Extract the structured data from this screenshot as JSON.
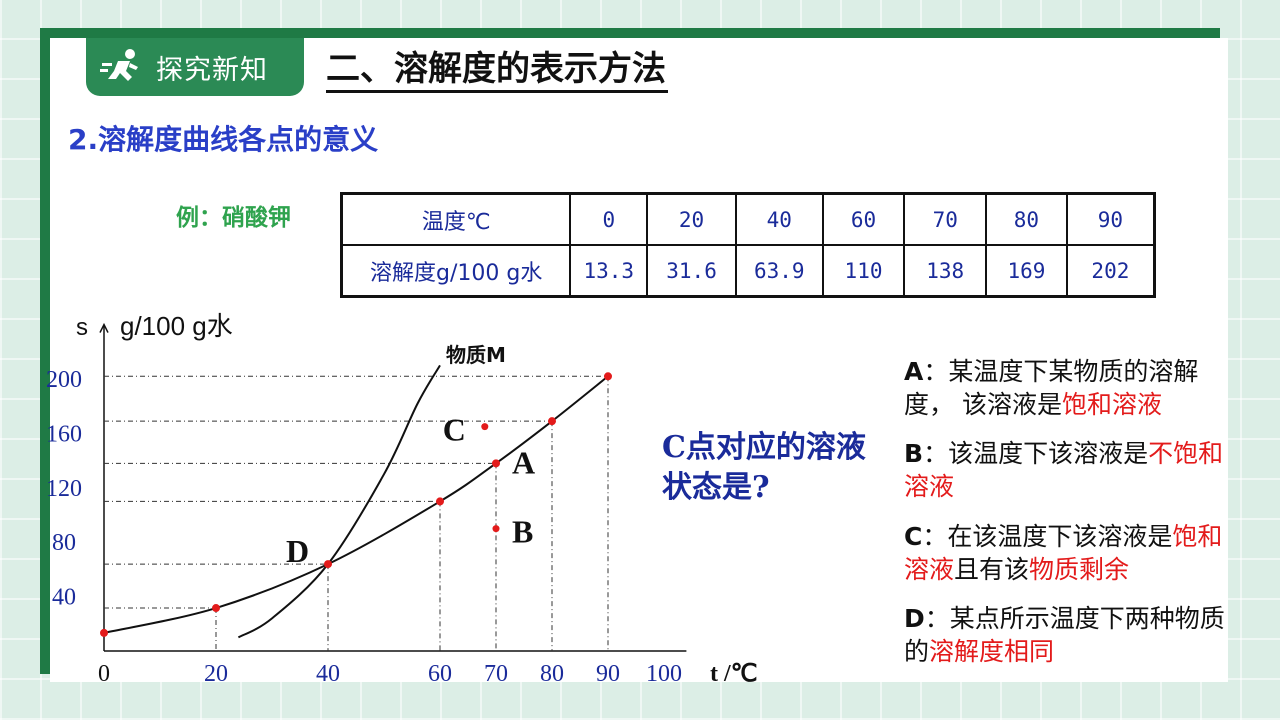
{
  "header": {
    "tag_label": "探究新知",
    "title": "二、溶解度的表示方法",
    "subtitle": "2.溶解度曲线各点的意义"
  },
  "example_label": "例：硝酸钾",
  "table": {
    "row1_label": "温度℃",
    "row2_label": "溶解度g/100 g水",
    "temperatures": [
      "0",
      "20",
      "40",
      "60",
      "70",
      "80",
      "90"
    ],
    "solubilities": [
      "13.3",
      "31.6",
      "63.9",
      "110",
      "138",
      "169",
      "202"
    ]
  },
  "chart_data": {
    "type": "line",
    "ylabel_s": "s",
    "ylabel": "g/100 g水",
    "xlabel": "t /℃",
    "x_ticks": [
      0,
      20,
      40,
      60,
      70,
      80,
      90,
      100
    ],
    "y_ticks": [
      40,
      80,
      120,
      160,
      200
    ],
    "series": [
      {
        "name": "",
        "x": [
          0,
          20,
          40,
          60,
          70,
          80,
          90
        ],
        "y": [
          13.3,
          31.6,
          63.9,
          110,
          138,
          169,
          202
        ],
        "marker_color": "#e31b1b"
      },
      {
        "name": "物质M",
        "x": [
          24,
          30,
          40,
          50,
          56,
          60
        ],
        "y": [
          10,
          24,
          63.9,
          130,
          182,
          210
        ]
      }
    ],
    "points": [
      {
        "label": "A",
        "x": 70,
        "y": 138
      },
      {
        "label": "B",
        "x": 70,
        "y": 90
      },
      {
        "label": "C",
        "x": 68,
        "y": 165
      },
      {
        "label": "D",
        "x": 40,
        "y": 63.9
      }
    ]
  },
  "question": "C点对应的溶液状态是?",
  "notes": {
    "A": {
      "key": "A",
      "text1": "：某温度下某物质的溶解度， 该溶液是",
      "red1": "饱和溶液"
    },
    "B": {
      "key": "B",
      "text1": "：该温度下该溶液是",
      "red1": "不饱和溶液"
    },
    "C": {
      "key": "C",
      "text1": "：在该温度下该溶液是",
      "red1": "饱和溶液",
      "text2": "且有该",
      "red2": "物质剩余"
    },
    "D": {
      "key": "D",
      "text1": "：某点所示温度下两种物质的",
      "red1": "溶解度相同"
    }
  },
  "colors": {
    "accent_green": "#2b8a55",
    "blue_text": "#2a3fc7",
    "red": "#e31b1b"
  }
}
